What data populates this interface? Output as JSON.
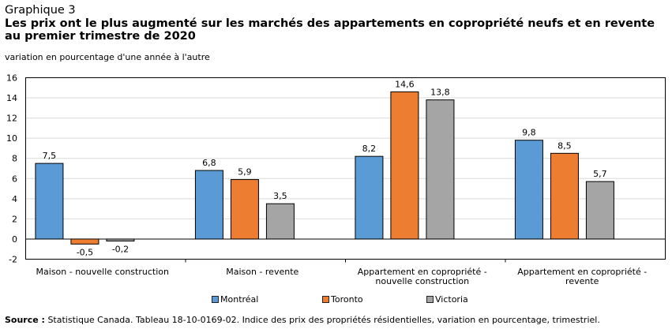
{
  "header": {
    "label": "Graphique 3",
    "title_line1": "Les prix ont le plus augmenté sur les marchés des appartements en copropriété neufs et en revente",
    "title_line2": "au premier trimestre de 2020",
    "unit": "variation en pourcentage d'une année à l'autre"
  },
  "chart_data": {
    "type": "bar",
    "categories": [
      [
        "Maison - nouvelle construction"
      ],
      [
        "Maison - revente"
      ],
      [
        "Appartement en copropriété -",
        "nouvelle construction"
      ],
      [
        "Appartement en copropriété -",
        "revente"
      ]
    ],
    "series": [
      {
        "name": "Montréal",
        "color": "#5b9bd5",
        "values": [
          7.5,
          6.8,
          8.2,
          9.8
        ]
      },
      {
        "name": "Toronto",
        "color": "#ed7d31",
        "values": [
          -0.5,
          5.9,
          14.6,
          8.5
        ]
      },
      {
        "name": "Victoria",
        "color": "#a5a5a5",
        "values": [
          -0.2,
          3.5,
          13.8,
          5.7
        ]
      }
    ],
    "value_labels": [
      [
        "7,5",
        "6,8",
        "8,2",
        "9,8"
      ],
      [
        "-0,5",
        "5,9",
        "14,6",
        "8,5"
      ],
      [
        "-0,2",
        "3,5",
        "13,8",
        "5,7"
      ]
    ],
    "ylim": [
      -2,
      16
    ],
    "yticks": [
      -2,
      0,
      2,
      4,
      6,
      8,
      10,
      12,
      14,
      16
    ],
    "grid": true,
    "legend_position": "bottom",
    "xlabel": "",
    "ylabel": ""
  },
  "legend": [
    {
      "label": "Montréal",
      "color": "#5b9bd5"
    },
    {
      "label": "Toronto",
      "color": "#ed7d31"
    },
    {
      "label": "Victoria",
      "color": "#a5a5a5"
    }
  ],
  "source": {
    "label": "Source :",
    "text": " Statistique Canada. Tableau 18-10-0169-02. Indice des prix des propriétés résidentielles, variation en pourcentage, trimestriel."
  }
}
